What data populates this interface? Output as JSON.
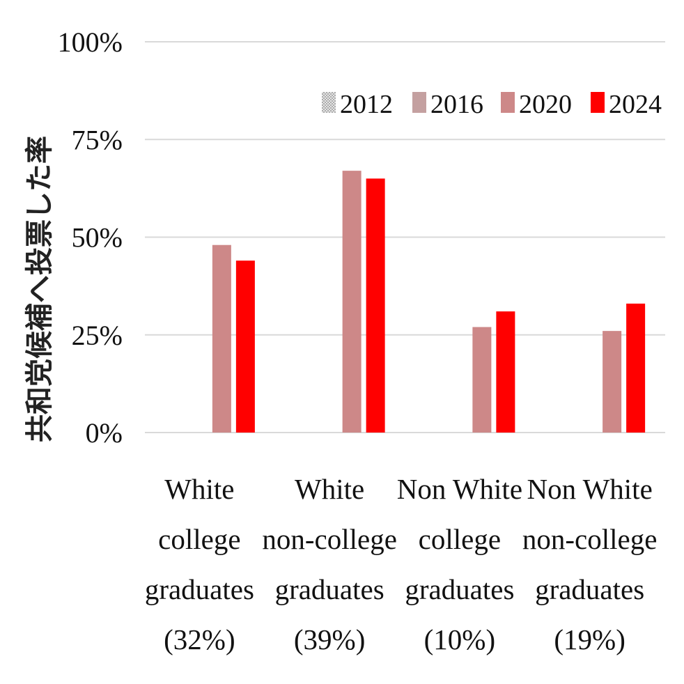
{
  "chart_data": {
    "type": "bar",
    "ylabel": "共和党候補へ投票した率",
    "xlabel": "",
    "ylim": [
      0,
      100
    ],
    "y_ticks": [
      0,
      25,
      50,
      75,
      100
    ],
    "y_tick_labels": [
      "0%",
      "25%",
      "50%",
      "75%",
      "100%"
    ],
    "grid": true,
    "legend_position": "top-right",
    "categories": [
      [
        "White",
        "college",
        "graduates",
        "(32%)"
      ],
      [
        "White",
        "non-college",
        "graduates",
        "(39%)"
      ],
      [
        "Non White",
        "college",
        "graduates",
        "(10%)"
      ],
      [
        "Non White",
        "non-college",
        "graduates",
        "(19%)"
      ]
    ],
    "series": [
      {
        "name": "2012",
        "color": "#c8c8c8",
        "pattern": "dotted",
        "values": [
          null,
          null,
          null,
          null
        ]
      },
      {
        "name": "2016",
        "color": "#c4a0a0",
        "values": [
          null,
          null,
          null,
          null
        ]
      },
      {
        "name": "2020",
        "color": "#cd8888",
        "values": [
          48,
          67,
          27,
          26
        ]
      },
      {
        "name": "2024",
        "color": "#ff0000",
        "values": [
          44,
          65,
          31,
          33
        ]
      }
    ]
  }
}
